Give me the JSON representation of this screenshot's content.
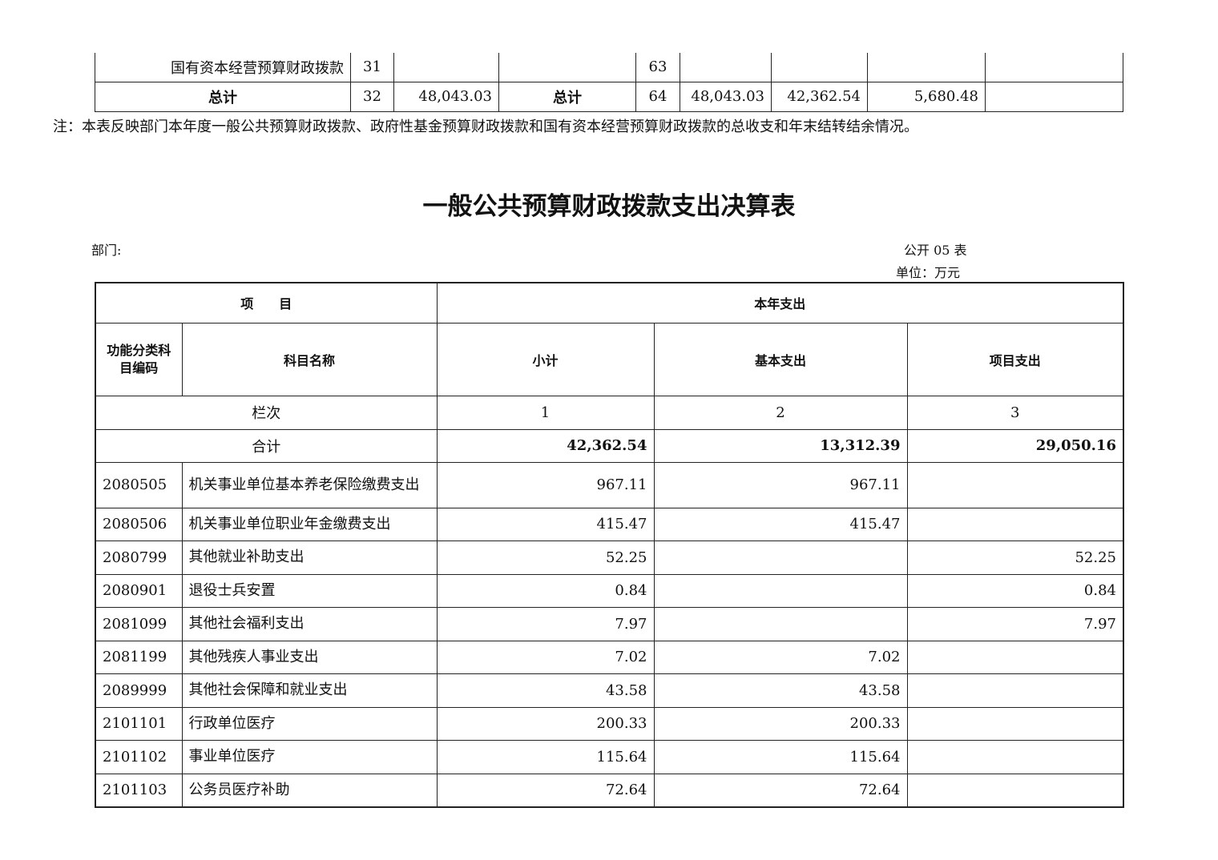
{
  "top_table": {
    "rows": [
      {
        "name": "国有资本经营预算财政拨款",
        "no1": "31",
        "v1": "",
        "name2": "",
        "no2": "63",
        "a": "",
        "b": "",
        "c": "",
        "d": ""
      },
      {
        "name": "总计",
        "no1": "32",
        "v1": "48,043.03",
        "name2": "总计",
        "no2": "64",
        "a": "48,043.03",
        "b": "42,362.54",
        "c": "5,680.48",
        "d": ""
      }
    ]
  },
  "note": "注：本表反映部门本年度一般公共预算财政拨款、政府性基金预算财政拨款和国有资本经营预算财政拨款的总收支和年末结转结余情况。",
  "title": "一般公共预算财政拨款支出决算表",
  "dept_label": "部门:",
  "table_no": "公开 05 表",
  "unit": "单位：万元",
  "header": {
    "item": "项　　目",
    "year_exp": "本年支出",
    "code": "功能分类科目编码",
    "subject": "科目名称",
    "subtotal": "小计",
    "basic": "基本支出",
    "project": "项目支出",
    "col_label": "栏次",
    "col1": "1",
    "col2": "2",
    "col3": "3",
    "total_label": "合计",
    "total1": "42,362.54",
    "total2": "13,312.39",
    "total3": "29,050.16"
  },
  "rows": [
    {
      "code": "2080505",
      "name": "机关事业单位基本养老保险缴费支出",
      "sub": "967.11",
      "basic": "967.11",
      "proj": ""
    },
    {
      "code": "2080506",
      "name": "机关事业单位职业年金缴费支出",
      "sub": "415.47",
      "basic": "415.47",
      "proj": ""
    },
    {
      "code": "2080799",
      "name": "其他就业补助支出",
      "sub": "52.25",
      "basic": "",
      "proj": "52.25"
    },
    {
      "code": "2080901",
      "name": "退役士兵安置",
      "sub": "0.84",
      "basic": "",
      "proj": "0.84"
    },
    {
      "code": "2081099",
      "name": "其他社会福利支出",
      "sub": "7.97",
      "basic": "",
      "proj": "7.97"
    },
    {
      "code": "2081199",
      "name": "其他残疾人事业支出",
      "sub": "7.02",
      "basic": "7.02",
      "proj": ""
    },
    {
      "code": "2089999",
      "name": "其他社会保障和就业支出",
      "sub": "43.58",
      "basic": "43.58",
      "proj": ""
    },
    {
      "code": "2101101",
      "name": "行政单位医疗",
      "sub": "200.33",
      "basic": "200.33",
      "proj": ""
    },
    {
      "code": "2101102",
      "name": "事业单位医疗",
      "sub": "115.64",
      "basic": "115.64",
      "proj": ""
    },
    {
      "code": "2101103",
      "name": "公务员医疗补助",
      "sub": "72.64",
      "basic": "72.64",
      "proj": ""
    }
  ]
}
